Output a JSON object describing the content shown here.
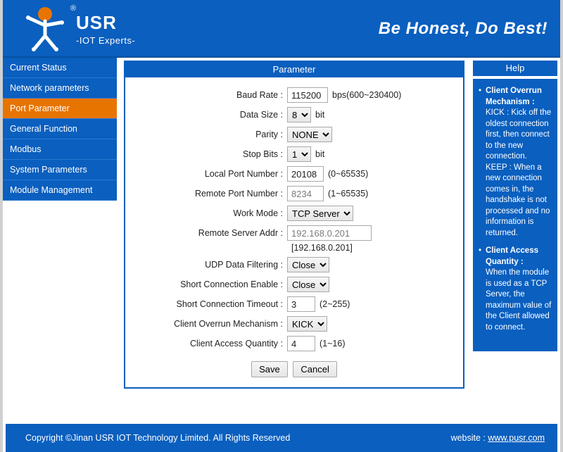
{
  "header": {
    "brand": "USR",
    "subtitle": "-IOT Experts-",
    "slogan": "Be Honest, Do Best!",
    "reg": "®"
  },
  "nav": {
    "items": [
      {
        "label": "Current Status",
        "active": false
      },
      {
        "label": "Network parameters",
        "active": false
      },
      {
        "label": "Port Parameter",
        "active": true
      },
      {
        "label": "General Function",
        "active": false
      },
      {
        "label": "Modbus",
        "active": false
      },
      {
        "label": "System Parameters",
        "active": false
      },
      {
        "label": "Module Management",
        "active": false
      }
    ]
  },
  "panel": {
    "title": "Parameter",
    "fields": {
      "baud_rate": {
        "label": "Baud Rate :",
        "value": "115200",
        "suffix": "bps(600~230400)",
        "width": 58
      },
      "data_size": {
        "label": "Data Size :",
        "value": "8",
        "suffix": "bit"
      },
      "parity": {
        "label": "Parity :",
        "value": "NONE"
      },
      "stop_bits": {
        "label": "Stop Bits :",
        "value": "1",
        "suffix": "bit"
      },
      "local_port": {
        "label": "Local Port Number :",
        "value": "20108",
        "suffix": "(0~65535)",
        "width": 52
      },
      "remote_port": {
        "label": "Remote Port Number :",
        "value": "8234",
        "suffix": "(1~65535)",
        "width": 52,
        "readonly": true
      },
      "work_mode": {
        "label": "Work Mode :",
        "value": "TCP Server"
      },
      "remote_addr": {
        "label": "Remote Server Addr :",
        "value": "192.168.0.201",
        "sub": "[192.168.0.201]",
        "width": 120,
        "readonly": true
      },
      "udp_filter": {
        "label": "UDP Data Filtering :",
        "value": "Close"
      },
      "short_conn": {
        "label": "Short Connection Enable :",
        "value": "Close"
      },
      "short_conn_to": {
        "label": "Short Connection Timeout :",
        "value": "3",
        "suffix": "(2~255)",
        "width": 40
      },
      "overrun": {
        "label": "Client Overrun Mechanism :",
        "value": "KICK"
      },
      "access_qty": {
        "label": "Client Access Quantity :",
        "value": "4",
        "suffix": "(1~16)",
        "width": 40
      }
    },
    "buttons": {
      "save": "Save",
      "cancel": "Cancel"
    }
  },
  "help": {
    "title": "Help",
    "items": [
      {
        "heading": "Client Overrun Mechanism :",
        "body": "KICK : Kick off the oldest connection first, then connect to the new connection.\nKEEP : When a new connection comes in, the handshake is not processed and no information is returned."
      },
      {
        "heading": "Client Access Quantity :",
        "body": "When the module is used as a TCP Server, the maximum value of the Client allowed to connect."
      }
    ]
  },
  "footer": {
    "copyright": "Copyright ©Jinan USR IOT Technology Limited. All Rights Reserved",
    "website_label": "website :",
    "website_url": "www.pusr.com"
  },
  "colors": {
    "primary": "#0a5fbf",
    "accent": "#e87400"
  }
}
